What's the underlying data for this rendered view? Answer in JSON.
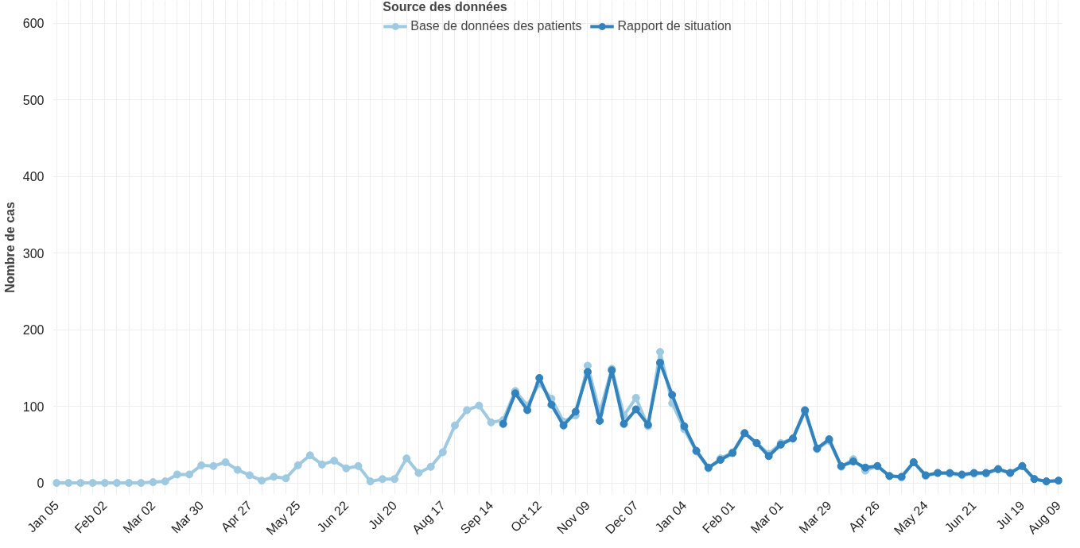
{
  "chart_data": {
    "type": "line",
    "ylabel": "Nombre de cas",
    "legend_title": "Source des données",
    "legend": "top",
    "marker": "circle",
    "line_style": "solid",
    "grid": true,
    "categories": [
      "Jan 05",
      null,
      null,
      null,
      "Feb 02",
      null,
      null,
      null,
      "Mar 02",
      null,
      null,
      null,
      "Mar 30",
      null,
      null,
      null,
      "Apr 27",
      null,
      null,
      null,
      "May 25",
      null,
      null,
      null,
      "Jun 22",
      null,
      null,
      null,
      "Jul 20",
      null,
      null,
      null,
      "Aug 17",
      null,
      null,
      null,
      "Sep 14",
      null,
      null,
      null,
      "Oct 12",
      null,
      null,
      null,
      "Nov 09",
      null,
      null,
      null,
      "Dec 07",
      null,
      null,
      null,
      "Jan 04",
      null,
      null,
      null,
      "Feb 01",
      null,
      null,
      null,
      "Mar 01",
      null,
      null,
      null,
      "Mar 29",
      null,
      null,
      null,
      "Apr 26",
      null,
      null,
      null,
      "May 24",
      null,
      null,
      null,
      "Jun 21",
      null,
      null,
      null,
      "Jul 19",
      null,
      null,
      "Aug 09"
    ],
    "series": [
      {
        "name": "Base de données des patients",
        "color": "#9ecae1",
        "values": [
          0,
          0,
          0,
          0,
          0,
          0,
          0,
          0,
          1,
          2,
          11,
          11,
          23,
          22,
          27,
          17,
          10,
          3,
          8,
          6,
          23,
          36,
          24,
          29,
          19,
          22,
          2,
          5,
          5,
          32,
          13,
          21,
          40,
          75,
          95,
          101,
          79,
          82,
          120,
          101,
          130,
          110,
          80,
          88,
          153,
          92,
          149,
          88,
          111,
          74,
          171,
          104,
          70,
          41,
          19,
          32,
          40,
          65,
          52,
          38,
          52,
          58,
          93,
          44,
          55,
          21,
          31,
          16,
          22,
          9,
          7,
          27,
          9,
          13,
          12,
          10,
          12,
          12,
          18,
          13,
          22,
          5,
          2,
          3
        ]
      },
      {
        "name": "Rapport de situation",
        "color": "#3182bd",
        "values": [
          null,
          null,
          null,
          null,
          null,
          null,
          null,
          null,
          null,
          null,
          null,
          null,
          null,
          null,
          null,
          null,
          null,
          null,
          null,
          null,
          null,
          null,
          null,
          null,
          null,
          null,
          null,
          null,
          null,
          null,
          null,
          null,
          null,
          null,
          null,
          null,
          null,
          77,
          117,
          95,
          137,
          102,
          75,
          93,
          145,
          81,
          147,
          77,
          96,
          76,
          157,
          115,
          74,
          42,
          20,
          30,
          39,
          65,
          52,
          35,
          50,
          58,
          95,
          45,
          57,
          22,
          28,
          20,
          22,
          9,
          8,
          27,
          10,
          13,
          13,
          11,
          13,
          13,
          18,
          13,
          22,
          5,
          2,
          3
        ]
      }
    ],
    "ylim": [
      -15,
      630
    ],
    "yticks": [
      0,
      100,
      200,
      300,
      400,
      500,
      600
    ]
  }
}
